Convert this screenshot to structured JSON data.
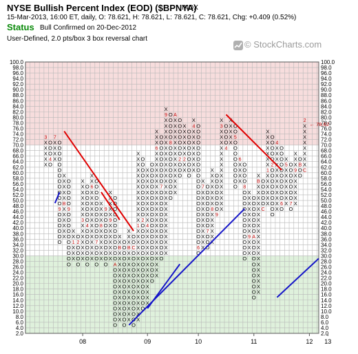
{
  "header": {
    "title": "NYSE Bullish Percent Index (EOD) ($BPNYA)",
    "exchange": "INDX",
    "quote": "15-Mar-2013, 16:00 ET, daily, O: 78.621, H: 78.621, L: 78.621, C: 78.621, Chg: +0.409 (0.52%)",
    "status_label": "Status",
    "status_text": "Bull Confirmed on 20-Dec-2012",
    "chart_type": "User-Defined, 2.0 pts/box 3 box reversal chart",
    "watermark": "© StockCharts.com",
    "watermark_icon": "stockcharts-logo-icon"
  },
  "colors": {
    "overbought_zone": "#f7dddd",
    "oversold_zone": "#dff1dc",
    "grid": "#b8b8b8",
    "resistance_line": "#e00000",
    "support_line": "#1414c8",
    "month_marker": "#c00000"
  },
  "chart_data": {
    "type": "point-and-figure",
    "box_size": 2,
    "reversal": 3,
    "y_axis": {
      "min": 2,
      "max": 100,
      "step": 2
    },
    "y_tick_labels": [
      "100.0",
      "98.0",
      "96.0",
      "94.0",
      "92.0",
      "90.0",
      "88.0",
      "86.0",
      "84.0",
      "82.0",
      "80.0",
      "78.0",
      "76.0",
      "74.0",
      "72.0",
      "70.0",
      "68.0",
      "66.0",
      "64.0",
      "62.0",
      "60.0",
      "58.0",
      "56.0",
      "54.0",
      "52.0",
      "50.0",
      "48.0",
      "46.0",
      "44.0",
      "42.0",
      "40.0",
      "38.0",
      "36.0",
      "34.0",
      "32.0",
      "30.0",
      "28.0",
      "26.0",
      "24.0",
      "22.0",
      "20.0",
      "18.0",
      "16.0",
      "14.0",
      "12.0",
      "10.0",
      "8.0",
      "6.0",
      "4.0",
      "2.0"
    ],
    "zones": [
      {
        "name": "overbought",
        "from": 70,
        "to": 100
      },
      {
        "name": "oversold",
        "from": 2,
        "to": 30
      }
    ],
    "x_labels": [
      {
        "label": "08",
        "col": 8
      },
      {
        "label": "09",
        "col": 22
      },
      {
        "label": "10",
        "col": 33
      },
      {
        "label": "11",
        "col": 45
      },
      {
        "label": "12",
        "col": 57
      },
      {
        "label": "13",
        "col": 61
      }
    ],
    "last_value": {
      "value": 78.621,
      "label": "78.62"
    },
    "columns": [
      {
        "type": "X",
        "low": 64,
        "high": 74,
        "marks": {
          "74": "3"
        }
      },
      {
        "type": "O",
        "low": 64,
        "high": 72,
        "marks": {
          "66": "4"
        }
      },
      {
        "type": "X",
        "low": 66,
        "high": 74,
        "marks": {
          "74": "7"
        }
      },
      {
        "type": "O",
        "low": 36,
        "high": 72,
        "marks": {
          "48": "9"
        }
      },
      {
        "type": "X",
        "low": 38,
        "high": 60,
        "marks": {
          "50": "B"
        }
      },
      {
        "type": "O",
        "low": 28,
        "high": 58,
        "marks": {
          "48": "9"
        }
      },
      {
        "type": "X",
        "low": 30,
        "high": 40,
        "marks": {
          "36": "1"
        }
      },
      {
        "type": "O",
        "low": 28,
        "high": 38,
        "marks": {
          "36": "2"
        }
      },
      {
        "type": "X",
        "low": 30,
        "high": 58,
        "marks": {
          "44": "3"
        }
      },
      {
        "type": "O",
        "low": 28,
        "high": 56,
        "marks": {
          "42": "4"
        }
      },
      {
        "type": "X",
        "low": 30,
        "high": 60,
        "marks": {
          "56": "6"
        }
      },
      {
        "type": "O",
        "low": 28,
        "high": 58,
        "marks": {
          "36": "7"
        }
      },
      {
        "type": "X",
        "low": 30,
        "high": 50,
        "marks": {
          "42": "8"
        }
      },
      {
        "type": "O",
        "low": 28,
        "high": 48,
        "marks": {
          "48": "9"
        }
      },
      {
        "type": "X",
        "low": 30,
        "high": 54,
        "marks": {
          "44": "9"
        }
      },
      {
        "type": "O",
        "low": 6,
        "high": 52,
        "marks": {
          "28": "A"
        }
      },
      {
        "type": "X",
        "low": 8,
        "high": 38,
        "marks": {
          "34": "B"
        }
      },
      {
        "type": "O",
        "low": 6,
        "high": 36,
        "marks": {}
      },
      {
        "type": "X",
        "low": 8,
        "high": 40,
        "marks": {
          "34": "B"
        }
      },
      {
        "type": "O",
        "low": 6,
        "high": 38,
        "marks": {
          "34": "C"
        }
      },
      {
        "type": "X",
        "low": 8,
        "high": 68,
        "marks": {
          "42": "1"
        }
      },
      {
        "type": "O",
        "low": 12,
        "high": 66,
        "marks": {
          "44": "2"
        }
      },
      {
        "type": "X",
        "low": 14,
        "high": 62,
        "marks": {
          "42": "4"
        }
      },
      {
        "type": "O",
        "low": 22,
        "high": 64,
        "marks": {
          "14": "3"
        }
      },
      {
        "type": "X",
        "low": 24,
        "high": 76,
        "marks": {
          "70": "6"
        }
      },
      {
        "type": "O",
        "low": 30,
        "high": 74,
        "marks": {
          "56": "7"
        }
      },
      {
        "type": "X",
        "low": 32,
        "high": 84,
        "marks": {
          "82": "9"
        }
      },
      {
        "type": "O",
        "low": 52,
        "high": 82,
        "marks": {
          "72": "8"
        }
      },
      {
        "type": "X",
        "low": 54,
        "high": 82,
        "marks": {
          "82": "A"
        }
      },
      {
        "type": "O",
        "low": 60,
        "high": 80,
        "marks": {
          "66": "2"
        }
      },
      {
        "type": "X",
        "low": 62,
        "high": 78,
        "marks": {
          "66": "2"
        }
      },
      {
        "type": "O",
        "low": 60,
        "high": 76,
        "marks": {}
      },
      {
        "type": "X",
        "low": 62,
        "high": 80,
        "marks": {
          "78": "4"
        }
      },
      {
        "type": "O",
        "low": 32,
        "high": 78,
        "marks": {
          "34": "6"
        }
      },
      {
        "type": "X",
        "low": 34,
        "high": 58,
        "marks": {
          "56": "7"
        }
      },
      {
        "type": "O",
        "low": 34,
        "high": 56,
        "marks": {
          "40": "7"
        }
      },
      {
        "type": "X",
        "low": 36,
        "high": 62,
        "marks": {
          "48": "8"
        }
      },
      {
        "type": "O",
        "low": 46,
        "high": 60,
        "marks": {
          "46": "9"
        }
      },
      {
        "type": "X",
        "low": 48,
        "high": 80,
        "marks": {
          "78": "3"
        }
      },
      {
        "type": "O",
        "low": 70,
        "high": 78,
        "marks": {
          "70": "4"
        }
      },
      {
        "type": "X",
        "low": 72,
        "high": 80,
        "marks": {}
      },
      {
        "type": "O",
        "low": 56,
        "high": 78,
        "marks": {
          "74": "5"
        }
      },
      {
        "type": "X",
        "low": 58,
        "high": 66,
        "marks": {
          "66": "6"
        }
      },
      {
        "type": "O",
        "low": 30,
        "high": 64,
        "marks": {
          "56": "8"
        }
      },
      {
        "type": "X",
        "low": 32,
        "high": 54,
        "marks": {
          "38": "9"
        }
      },
      {
        "type": "O",
        "low": 16,
        "high": 52,
        "marks": {
          "38": "A"
        }
      },
      {
        "type": "X",
        "low": 18,
        "high": 60,
        "marks": {
          "58": "B"
        }
      },
      {
        "type": "O",
        "low": 48,
        "high": 58,
        "marks": {
          "48": "C"
        }
      },
      {
        "type": "X",
        "low": 50,
        "high": 76,
        "marks": {
          "62": "1"
        }
      },
      {
        "type": "O",
        "low": 46,
        "high": 74,
        "marks": {
          "64": "2"
        }
      },
      {
        "type": "X",
        "low": 48,
        "high": 72,
        "marks": {
          "72": "4"
        }
      },
      {
        "type": "O",
        "low": 48,
        "high": 70,
        "marks": {
          "50": "6"
        }
      },
      {
        "type": "X",
        "low": 50,
        "high": 66,
        "marks": {
          "64": "5"
        }
      },
      {
        "type": "O",
        "low": 48,
        "high": 64,
        "marks": {
          "50": "7"
        }
      },
      {
        "type": "X",
        "low": 50,
        "high": 68,
        "marks": {
          "62": "9"
        }
      },
      {
        "type": "O",
        "low": 60,
        "high": 66,
        "marks": {
          "64": "B"
        }
      },
      {
        "type": "X",
        "low": 62,
        "high": 80,
        "marks": {
          "80": "2",
          "62": "C"
        }
      }
    ],
    "trend_lines": [
      {
        "type": "resistance",
        "points": [
          [
            4,
            76
          ],
          [
            19,
            40
          ]
        ]
      },
      {
        "type": "resistance",
        "points": [
          [
            12,
            54
          ],
          [
            16,
            44
          ]
        ]
      },
      {
        "type": "resistance",
        "points": [
          [
            39,
            82
          ],
          [
            51,
            62
          ]
        ]
      },
      {
        "type": "support",
        "points": [
          [
            2,
            50
          ],
          [
            3,
            54
          ]
        ]
      },
      {
        "type": "support",
        "points": [
          [
            18,
            6
          ],
          [
            43,
            48
          ]
        ]
      },
      {
        "type": "support",
        "points": [
          [
            22,
            12
          ],
          [
            29,
            28
          ]
        ]
      },
      {
        "type": "support",
        "points": [
          [
            50,
            16
          ],
          [
            59,
            30
          ]
        ]
      }
    ]
  }
}
